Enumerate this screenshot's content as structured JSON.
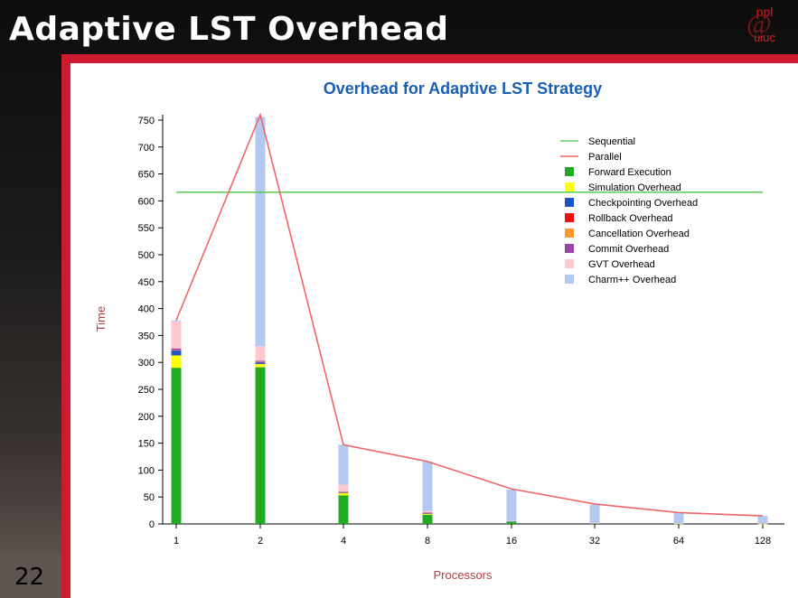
{
  "slide": {
    "title": "Adaptive LST Overhead",
    "number": "22",
    "logo_text_top": "ppl",
    "logo_text_bottom": "uiuc",
    "logo_symbol": "@"
  },
  "chart_data": {
    "type": "bar",
    "title": "Overhead for Adaptive LST Strategy",
    "xlabel": "Processors",
    "ylabel": "Time",
    "categories": [
      "1",
      "2",
      "4",
      "8",
      "16",
      "32",
      "64",
      "128"
    ],
    "ylim": [
      0,
      760
    ],
    "yticks": [
      0,
      50,
      100,
      150,
      200,
      250,
      300,
      350,
      400,
      450,
      500,
      550,
      600,
      650,
      700,
      750
    ],
    "stacked": true,
    "grid": false,
    "legend_position": "top-right",
    "lines": [
      {
        "name": "Sequential",
        "color": "#66cc66",
        "values": [
          616,
          616,
          616,
          616,
          616,
          616,
          616,
          616
        ]
      },
      {
        "name": "Parallel",
        "color": "#ee6666",
        "values": [
          378,
          760,
          147,
          116,
          65,
          37,
          21,
          15
        ]
      }
    ],
    "series": [
      {
        "name": "Forward Execution",
        "color": "#22aa22",
        "values": [
          290,
          291,
          53,
          17,
          4,
          1,
          0.5,
          0.3
        ]
      },
      {
        "name": "Simulation Overhead",
        "color": "#ffff00",
        "values": [
          23,
          6,
          4,
          2,
          0.5,
          0.3,
          0.2,
          0.1
        ]
      },
      {
        "name": "Checkpointing Overhead",
        "color": "#1a55cc",
        "values": [
          9,
          3,
          1,
          0.5,
          0.2,
          0.1,
          0.1,
          0
        ]
      },
      {
        "name": "Rollback Overhead",
        "color": "#ee1111",
        "values": [
          0,
          0,
          0,
          0,
          0,
          0,
          0,
          0
        ]
      },
      {
        "name": "Cancellation Overhead",
        "color": "#ff9933",
        "values": [
          1,
          1,
          1,
          1,
          0,
          0,
          0,
          0
        ]
      },
      {
        "name": "Commit Overhead",
        "color": "#9944aa",
        "values": [
          3,
          2,
          1,
          0.5,
          0,
          0,
          0,
          0
        ]
      },
      {
        "name": "GVT Overhead",
        "color": "#ffc8cc",
        "values": [
          50,
          27,
          13,
          3,
          1,
          0.5,
          0.3,
          0.2
        ]
      },
      {
        "name": "Charm++ Overhead",
        "color": "#b3c9f2",
        "values": [
          2,
          426,
          74,
          92,
          58,
          34,
          19,
          14
        ]
      }
    ]
  }
}
